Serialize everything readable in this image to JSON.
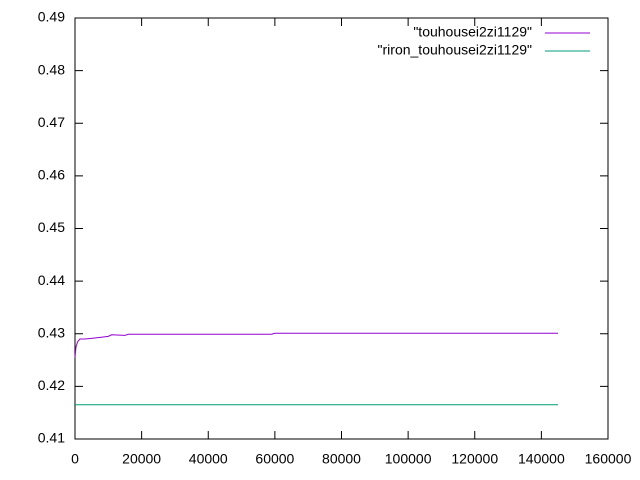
{
  "chart_data": {
    "type": "line",
    "x": [
      0,
      300,
      800,
      1500,
      3000,
      6000,
      10000,
      11000,
      15000,
      16000,
      24000,
      59000,
      60000,
      145000
    ],
    "series": [
      {
        "name": "\"touhousei2zi1129\"",
        "color": "#9400d3",
        "values": [
          0.4255,
          0.4275,
          0.4285,
          0.429,
          0.429,
          0.4292,
          0.4295,
          0.4298,
          0.4297,
          0.4299,
          0.4299,
          0.4299,
          0.4301,
          0.4301
        ]
      },
      {
        "name": "\"riron_touhousei2zi1129\"",
        "color": "#009e73",
        "values": [
          0.4165,
          0.4165,
          0.4165,
          0.4165,
          0.4165,
          0.4165,
          0.4165,
          0.4165,
          0.4165,
          0.4165,
          0.4165,
          0.4165,
          0.4165,
          0.4165
        ]
      }
    ],
    "xlim": [
      0,
      160000
    ],
    "xticks": [
      0,
      20000,
      40000,
      60000,
      80000,
      100000,
      120000,
      140000,
      160000
    ],
    "ylim": [
      0.41,
      0.49
    ],
    "yticks": [
      0.41,
      0.42,
      0.43,
      0.44,
      0.45,
      0.46,
      0.47,
      0.48,
      0.49
    ],
    "legend": "top-right"
  }
}
